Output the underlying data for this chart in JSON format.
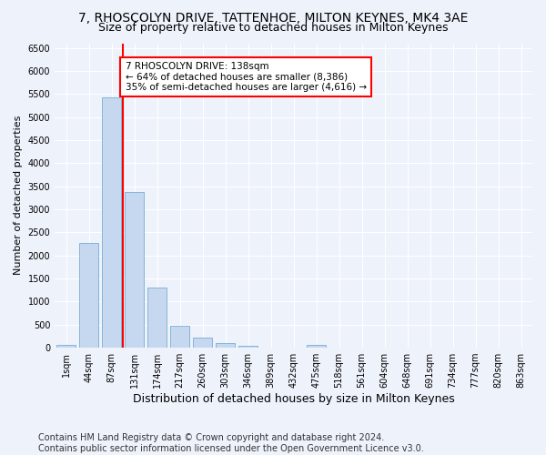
{
  "title1": "7, RHOSCOLYN DRIVE, TATTENHOE, MILTON KEYNES, MK4 3AE",
  "title2": "Size of property relative to detached houses in Milton Keynes",
  "xlabel": "Distribution of detached houses by size in Milton Keynes",
  "ylabel": "Number of detached properties",
  "footer": "Contains HM Land Registry data © Crown copyright and database right 2024.\nContains public sector information licensed under the Open Government Licence v3.0.",
  "bar_labels": [
    "1sqm",
    "44sqm",
    "87sqm",
    "131sqm",
    "174sqm",
    "217sqm",
    "260sqm",
    "303sqm",
    "346sqm",
    "389sqm",
    "432sqm",
    "475sqm",
    "518sqm",
    "561sqm",
    "604sqm",
    "648sqm",
    "691sqm",
    "734sqm",
    "777sqm",
    "820sqm",
    "863sqm"
  ],
  "bar_heights": [
    70,
    2280,
    5420,
    3380,
    1310,
    475,
    215,
    100,
    45,
    10,
    5,
    55,
    0,
    0,
    0,
    0,
    0,
    0,
    0,
    0,
    0
  ],
  "bar_color": "#c5d8f0",
  "bar_edge_color": "#7aadd4",
  "vline_color": "red",
  "vline_x_index": 3,
  "ylim": [
    0,
    6600
  ],
  "yticks": [
    0,
    500,
    1000,
    1500,
    2000,
    2500,
    3000,
    3500,
    4000,
    4500,
    5000,
    5500,
    6000,
    6500
  ],
  "annotation_text": "7 RHOSCOLYN DRIVE: 138sqm\n← 64% of detached houses are smaller (8,386)\n35% of semi-detached houses are larger (4,616) →",
  "annotation_box_color": "white",
  "annotation_box_edge_color": "red",
  "background_color": "#eef2fb",
  "grid_color": "white",
  "title1_fontsize": 10,
  "title2_fontsize": 9,
  "xlabel_fontsize": 9,
  "ylabel_fontsize": 8,
  "tick_fontsize": 7,
  "annotation_fontsize": 7.5,
  "footer_fontsize": 7
}
